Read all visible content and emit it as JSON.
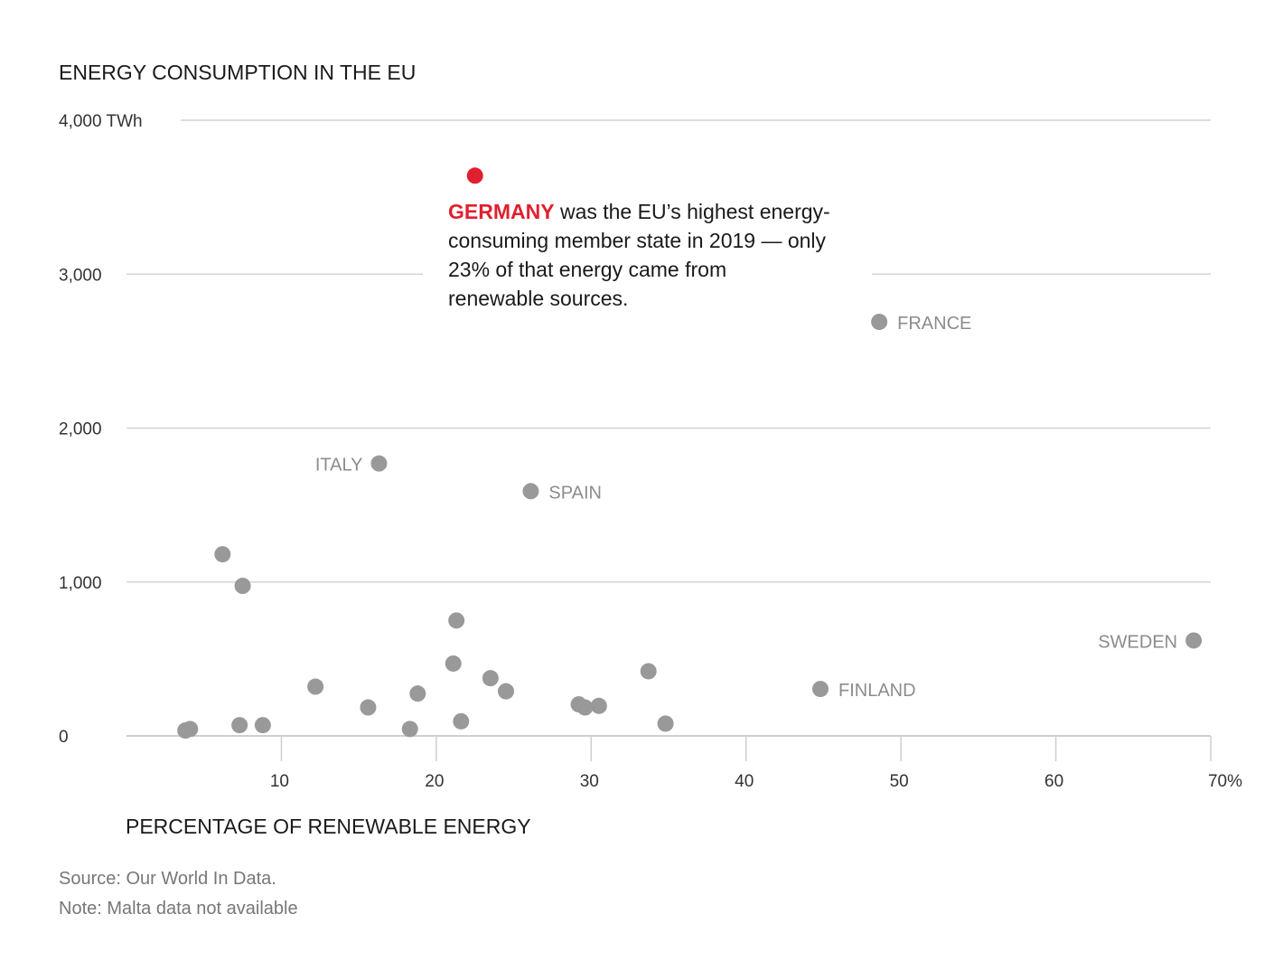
{
  "colors": {
    "highlight": "#e0202f",
    "point": "#999999",
    "label": "#8c8c8c",
    "grid": "#d4d4d4",
    "text": "#1a1a1a",
    "note": "#777777"
  },
  "chart_data": {
    "type": "scatter",
    "title": "ENERGY CONSUMPTION IN THE EU",
    "xlabel": "PERCENTAGE OF RENEWABLE ENERGY",
    "ylabel": "",
    "xlim": [
      0,
      70
    ],
    "ylim": [
      0,
      4000
    ],
    "grid": "horizontal",
    "x_ticks": [
      {
        "value": 10,
        "label": "10"
      },
      {
        "value": 20,
        "label": "20"
      },
      {
        "value": 30,
        "label": "30"
      },
      {
        "value": 40,
        "label": "40"
      },
      {
        "value": 50,
        "label": "50"
      },
      {
        "value": 60,
        "label": "60"
      },
      {
        "value": 70,
        "label": "70%"
      }
    ],
    "y_ticks": [
      {
        "value": 0,
        "label": "0"
      },
      {
        "value": 1000,
        "label": "1,000"
      },
      {
        "value": 2000,
        "label": "2,000"
      },
      {
        "value": 3000,
        "label": "3,000"
      },
      {
        "value": 4000,
        "label": "4,000 TWh"
      }
    ],
    "points": [
      {
        "x": 22.5,
        "y": 3640,
        "label": "",
        "highlight": true
      },
      {
        "x": 48.6,
        "y": 2690,
        "label": "FRANCE",
        "label_side": "right"
      },
      {
        "x": 16.3,
        "y": 1770,
        "label": "ITALY",
        "label_side": "left"
      },
      {
        "x": 26.1,
        "y": 1590,
        "label": "SPAIN",
        "label_side": "right"
      },
      {
        "x": 6.2,
        "y": 1180,
        "label": ""
      },
      {
        "x": 7.5,
        "y": 975,
        "label": ""
      },
      {
        "x": 21.3,
        "y": 750,
        "label": ""
      },
      {
        "x": 68.9,
        "y": 620,
        "label": "SWEDEN",
        "label_side": "left"
      },
      {
        "x": 21.1,
        "y": 470,
        "label": ""
      },
      {
        "x": 33.7,
        "y": 420,
        "label": ""
      },
      {
        "x": 23.5,
        "y": 375,
        "label": ""
      },
      {
        "x": 12.2,
        "y": 320,
        "label": ""
      },
      {
        "x": 44.8,
        "y": 305,
        "label": "FINLAND",
        "label_side": "right"
      },
      {
        "x": 24.5,
        "y": 290,
        "label": ""
      },
      {
        "x": 18.8,
        "y": 275,
        "label": ""
      },
      {
        "x": 29.2,
        "y": 205,
        "label": ""
      },
      {
        "x": 30.5,
        "y": 195,
        "label": ""
      },
      {
        "x": 29.6,
        "y": 185,
        "label": ""
      },
      {
        "x": 15.6,
        "y": 185,
        "label": ""
      },
      {
        "x": 21.6,
        "y": 95,
        "label": ""
      },
      {
        "x": 34.8,
        "y": 80,
        "label": ""
      },
      {
        "x": 7.3,
        "y": 70,
        "label": ""
      },
      {
        "x": 8.8,
        "y": 70,
        "label": ""
      },
      {
        "x": 4.1,
        "y": 45,
        "label": ""
      },
      {
        "x": 18.3,
        "y": 45,
        "label": ""
      },
      {
        "x": 3.8,
        "y": 35,
        "label": ""
      }
    ],
    "annotation": {
      "highlight_word": "GERMANY",
      "lines": [
        " was the EU’s highest energy-",
        "consuming member state in 2019 — only",
        "23% of that energy came from",
        "renewable sources."
      ]
    }
  },
  "footer": {
    "source": "Source: Our World In Data.",
    "note": "Note: Malta data not available"
  }
}
